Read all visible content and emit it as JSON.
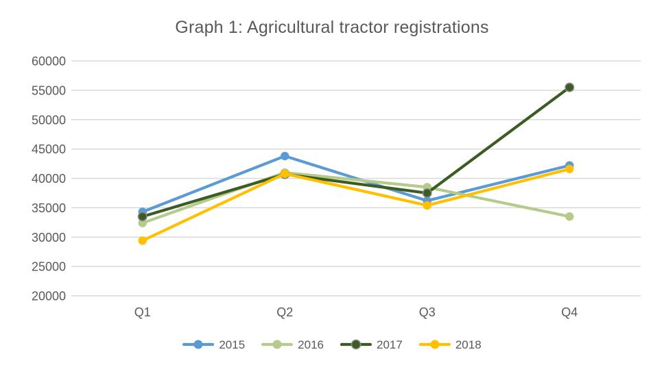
{
  "page": {
    "background": "#ffffff"
  },
  "chart_data": {
    "type": "line",
    "title": "Graph 1: Agricultural tractor registrations",
    "title_color": "#595959",
    "categories": [
      "Q1",
      "Q2",
      "Q3",
      "Q4"
    ],
    "series": [
      {
        "name": "2015",
        "color": "#5B9BD5",
        "values": [
          34300,
          43800,
          36200,
          42200
        ]
      },
      {
        "name": "2016",
        "color": "#B5CB8B",
        "values": [
          32400,
          41000,
          38500,
          33500
        ]
      },
      {
        "name": "2017",
        "color": "#3D5C23",
        "values": [
          33500,
          40700,
          37500,
          55500
        ],
        "marker_outline": "#8A8A8A"
      },
      {
        "name": "2018",
        "color": "#FFC000",
        "values": [
          29400,
          40800,
          35400,
          41600
        ]
      }
    ],
    "xlabel": "",
    "ylabel": "",
    "ylim": [
      20000,
      60000
    ],
    "yticks": [
      60000,
      55000,
      50000,
      45000,
      40000,
      35000,
      30000,
      25000,
      20000
    ],
    "grid": true,
    "gridline_color": "#D9D9D9",
    "axis_label_color": "#595959",
    "legend_position": "bottom"
  }
}
